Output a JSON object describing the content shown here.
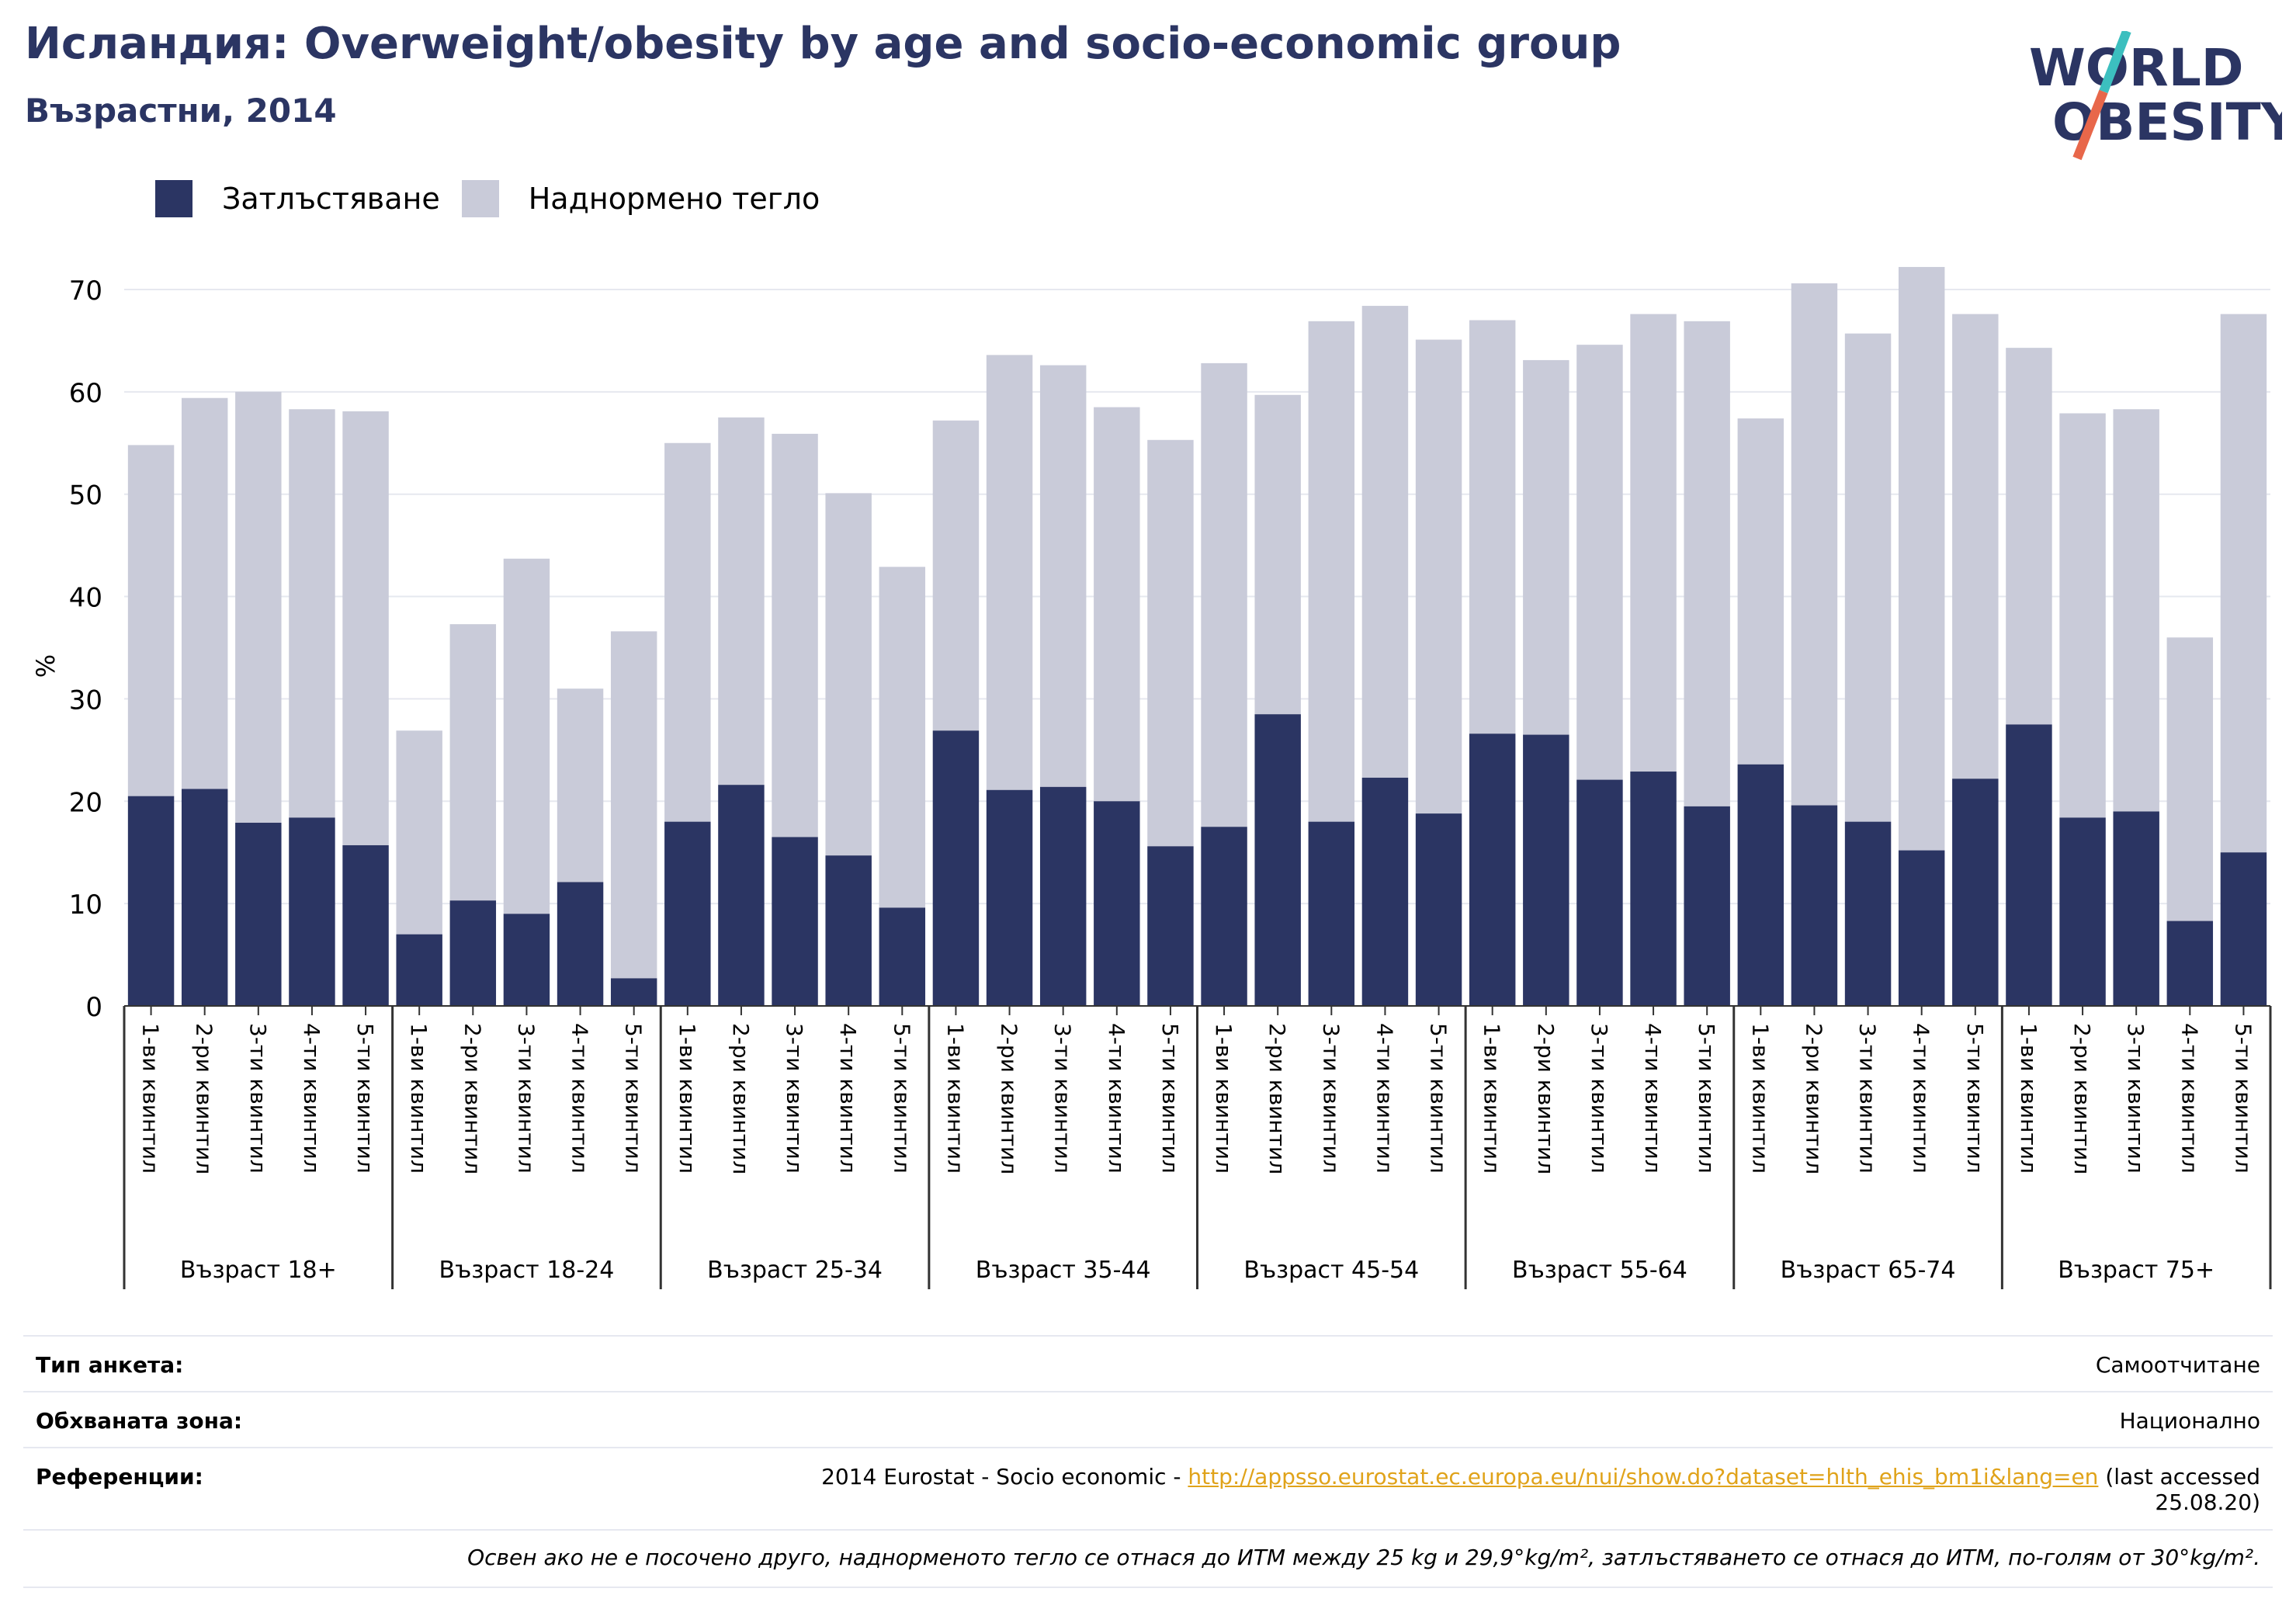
{
  "header": {
    "title": "Исландия: Overweight/obesity by age and socio-economic group",
    "subtitle": "Възрастни, 2014"
  },
  "logo": {
    "line1": "WORLD",
    "line2": "OBESITY",
    "colors": {
      "text": "#2b3563",
      "slash_top": "#3cbfbf",
      "slash_bottom": "#e8674a"
    }
  },
  "legend": {
    "items": [
      {
        "label": "Затлъстяване",
        "color": "#2b3563"
      },
      {
        "label": "Наднормено тегло",
        "color": "#c9cbd9"
      }
    ]
  },
  "colors": {
    "obesity": "#2b3563",
    "overweight": "#c9cbd9",
    "grid": "#e6e8ef",
    "axis": "#333333"
  },
  "chart_data": {
    "type": "bar",
    "stacked": true,
    "ylabel": "%",
    "ylim": [
      0,
      72.5
    ],
    "yticks": [
      0,
      10,
      20,
      30,
      40,
      50,
      60,
      70
    ],
    "grid": true,
    "legend_position": "top-left",
    "groups": [
      "Възраст 18+",
      "Възраст 18-24",
      "Възраст 25-34",
      "Възраст 35-44",
      "Възраст 45-54",
      "Възраст 55-64",
      "Възраст 65-74",
      "Възраст 75+"
    ],
    "subcategories": [
      "1-ви квинтил",
      "2-ри квинтил",
      "3-ти квинтил",
      "4-ти квинтил",
      "5-ти квинтил"
    ],
    "series": [
      {
        "name": "Затлъстяване",
        "values": [
          [
            20.5,
            21.2,
            17.9,
            18.4,
            15.7
          ],
          [
            7.0,
            10.3,
            9.0,
            12.1,
            2.7
          ],
          [
            18.0,
            21.6,
            16.5,
            14.7,
            9.6
          ],
          [
            26.9,
            21.1,
            21.4,
            20.0,
            15.6
          ],
          [
            17.5,
            28.5,
            18.0,
            22.3,
            18.8
          ],
          [
            26.6,
            26.5,
            22.1,
            22.9,
            19.5
          ],
          [
            23.6,
            19.6,
            18.0,
            15.2,
            22.2
          ],
          [
            27.5,
            18.4,
            19.0,
            8.3,
            15.0
          ]
        ]
      },
      {
        "name": "Наднормено тегло",
        "values": [
          [
            34.3,
            38.2,
            42.1,
            39.9,
            42.4
          ],
          [
            19.9,
            27.0,
            34.7,
            18.9,
            33.9
          ],
          [
            37.0,
            35.9,
            39.4,
            35.4,
            33.3
          ],
          [
            30.3,
            42.5,
            41.2,
            38.5,
            39.7
          ],
          [
            45.3,
            31.2,
            48.9,
            46.1,
            46.3
          ],
          [
            40.4,
            36.6,
            42.5,
            44.7,
            47.4
          ],
          [
            33.8,
            51.0,
            47.7,
            57.0,
            45.4
          ],
          [
            36.8,
            39.5,
            39.3,
            27.7,
            52.6
          ]
        ]
      }
    ]
  },
  "meta": {
    "survey_type_label": "Тип анкета:",
    "survey_type_value": "Самоотчитане",
    "coverage_label": "Обхваната зона:",
    "coverage_value": "Национално",
    "references_label": "Референции:",
    "ref_prefix": "2014 Eurostat - Socio economic - ",
    "ref_link": "http://appsso.eurostat.ec.europa.eu/nui/show.do?dataset=hlth_ehis_bm1i&lang=en",
    "ref_suffix": " (last accessed",
    "ref_date": "25.08.20)",
    "note": "Освен ако не е посочено друго, наднорменото тегло се отнася до ИТМ между 25 kg и 29,9°kg/m², затлъстяването се отнася до ИТМ, по-голям от 30°kg/m²."
  }
}
